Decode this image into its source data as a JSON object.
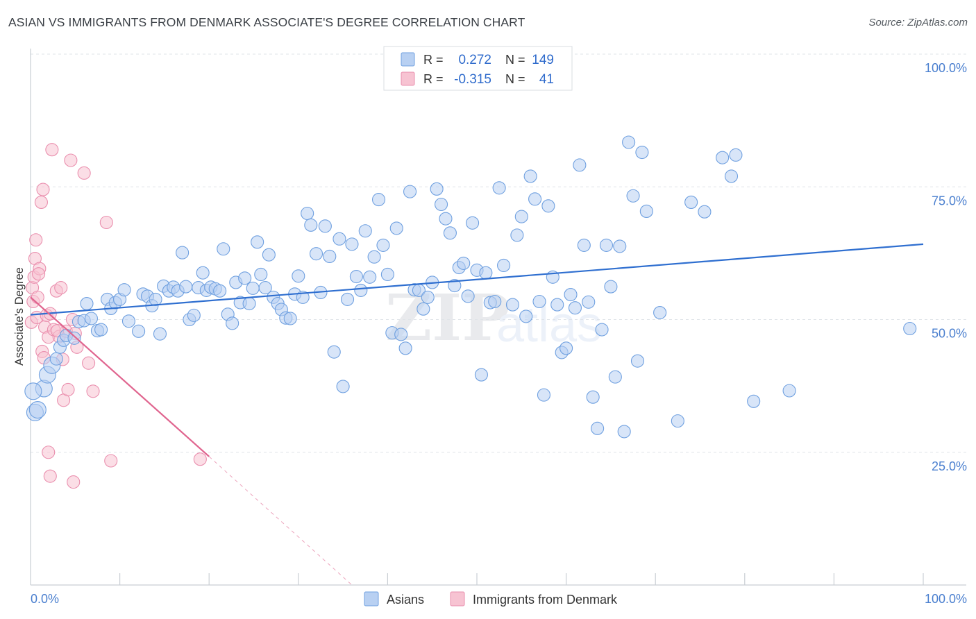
{
  "header": {
    "title": "ASIAN VS IMMIGRANTS FROM DENMARK ASSOCIATE'S DEGREE CORRELATION CHART",
    "source": "Source: ZipAtlas.com"
  },
  "watermark": {
    "zip": "ZIP",
    "atlas": "atlas"
  },
  "colors": {
    "asians_fill": "#b8d0f2",
    "asians_stroke": "#6fa0e0",
    "asians_line": "#2f6fd0",
    "denmark_fill": "#f7c3d2",
    "denmark_stroke": "#ea8fae",
    "denmark_line": "#e0658f",
    "tick_label": "#4a7fcf",
    "grid": "#dfe3e8"
  },
  "legend": {
    "r_label": "R =",
    "n_label": "N =",
    "rows": [
      {
        "r": "0.272",
        "n": "149"
      },
      {
        "r": "-0.315",
        "n": "41"
      }
    ]
  },
  "bottom_legend": [
    {
      "label": "Asians"
    },
    {
      "label": "Immigrants from Denmark"
    }
  ],
  "chart_data": {
    "type": "scatter",
    "xlabel": "",
    "ylabel": "Associate's Degree",
    "x_tick_labels": [
      "0.0%",
      "100.0%"
    ],
    "y_tick_labels": [
      "100.0%",
      "75.0%",
      "50.0%",
      "25.0%"
    ],
    "y_ticks": [
      100,
      75,
      50,
      25
    ],
    "xlim": [
      0,
      100
    ],
    "ylim": [
      0,
      100
    ],
    "grid": true,
    "legend_position": "top-center",
    "series": [
      {
        "name": "Asians",
        "trend": {
          "x": [
            0,
            100
          ],
          "y": [
            50.9,
            64.2
          ]
        },
        "points": [
          [
            0.5,
            32.5
          ],
          [
            0.8,
            33.0
          ],
          [
            1.5,
            37.0
          ],
          [
            1.9,
            39.6
          ],
          [
            2.4,
            41.4
          ],
          [
            2.9,
            42.6
          ],
          [
            3.3,
            44.8
          ],
          [
            3.7,
            46.1
          ],
          [
            4.0,
            47.0
          ],
          [
            4.9,
            46.5
          ],
          [
            5.4,
            49.6
          ],
          [
            6.0,
            49.8
          ],
          [
            6.8,
            50.2
          ],
          [
            7.5,
            47.9
          ],
          [
            7.9,
            48.1
          ],
          [
            8.6,
            53.8
          ],
          [
            9.0,
            52.1
          ],
          [
            9.5,
            53.2
          ],
          [
            10.0,
            53.8
          ],
          [
            10.5,
            55.6
          ],
          [
            11.0,
            49.7
          ],
          [
            12.1,
            47.8
          ],
          [
            12.6,
            54.8
          ],
          [
            13.1,
            54.4
          ],
          [
            13.6,
            52.6
          ],
          [
            14.0,
            53.8
          ],
          [
            14.5,
            47.3
          ],
          [
            14.9,
            56.3
          ],
          [
            15.5,
            55.4
          ],
          [
            16.0,
            56.1
          ],
          [
            16.5,
            55.4
          ],
          [
            17.0,
            62.6
          ],
          [
            17.4,
            56.2
          ],
          [
            17.8,
            50.0
          ],
          [
            18.3,
            50.8
          ],
          [
            18.8,
            56.0
          ],
          [
            19.3,
            58.8
          ],
          [
            19.7,
            55.5
          ],
          [
            20.2,
            56.1
          ],
          [
            20.7,
            55.8
          ],
          [
            21.2,
            55.4
          ],
          [
            21.6,
            63.3
          ],
          [
            22.1,
            51.0
          ],
          [
            22.6,
            49.3
          ],
          [
            23.0,
            57.0
          ],
          [
            23.5,
            53.2
          ],
          [
            24.0,
            57.8
          ],
          [
            24.5,
            53.0
          ],
          [
            24.9,
            55.9
          ],
          [
            25.4,
            64.6
          ],
          [
            25.8,
            58.5
          ],
          [
            26.3,
            56.0
          ],
          [
            26.7,
            62.2
          ],
          [
            27.2,
            54.2
          ],
          [
            27.7,
            53.0
          ],
          [
            28.1,
            51.9
          ],
          [
            28.6,
            50.3
          ],
          [
            29.1,
            50.2
          ],
          [
            29.6,
            54.8
          ],
          [
            30.0,
            58.2
          ],
          [
            30.5,
            54.2
          ],
          [
            31.0,
            70.0
          ],
          [
            31.4,
            67.8
          ],
          [
            32.0,
            62.4
          ],
          [
            32.5,
            55.1
          ],
          [
            33.0,
            67.6
          ],
          [
            33.5,
            61.9
          ],
          [
            34.0,
            43.9
          ],
          [
            34.6,
            65.2
          ],
          [
            35.0,
            37.4
          ],
          [
            35.5,
            53.8
          ],
          [
            36.0,
            64.2
          ],
          [
            36.5,
            58.1
          ],
          [
            37.0,
            55.5
          ],
          [
            37.5,
            66.7
          ],
          [
            38.0,
            58.0
          ],
          [
            38.5,
            61.8
          ],
          [
            39.0,
            72.6
          ],
          [
            39.5,
            64.0
          ],
          [
            40.0,
            58.5
          ],
          [
            40.5,
            47.5
          ],
          [
            41.0,
            67.2
          ],
          [
            41.5,
            47.2
          ],
          [
            42.0,
            44.6
          ],
          [
            42.5,
            74.1
          ],
          [
            43.0,
            55.6
          ],
          [
            43.5,
            55.5
          ],
          [
            44.0,
            52.0
          ],
          [
            44.5,
            54.2
          ],
          [
            45.0,
            57.0
          ],
          [
            45.5,
            74.6
          ],
          [
            46.0,
            71.7
          ],
          [
            46.5,
            69.0
          ],
          [
            47.0,
            66.3
          ],
          [
            47.5,
            56.4
          ],
          [
            48.0,
            59.8
          ],
          [
            48.5,
            60.6
          ],
          [
            49.0,
            54.4
          ],
          [
            49.5,
            68.2
          ],
          [
            50.0,
            59.3
          ],
          [
            50.5,
            39.6
          ],
          [
            51.0,
            58.8
          ],
          [
            51.5,
            53.2
          ],
          [
            52.0,
            53.4
          ],
          [
            52.5,
            74.8
          ],
          [
            53.0,
            60.2
          ],
          [
            54.0,
            52.8
          ],
          [
            54.5,
            65.9
          ],
          [
            55.0,
            69.4
          ],
          [
            55.5,
            50.6
          ],
          [
            56.0,
            77.0
          ],
          [
            56.5,
            72.7
          ],
          [
            57.0,
            53.4
          ],
          [
            57.5,
            35.8
          ],
          [
            58.0,
            71.4
          ],
          [
            58.5,
            58.0
          ],
          [
            59.0,
            52.8
          ],
          [
            59.5,
            43.8
          ],
          [
            60.0,
            44.6
          ],
          [
            60.5,
            54.7
          ],
          [
            61.0,
            52.2
          ],
          [
            61.5,
            79.1
          ],
          [
            62.0,
            64.0
          ],
          [
            62.5,
            53.3
          ],
          [
            63.0,
            35.4
          ],
          [
            63.5,
            29.5
          ],
          [
            64.0,
            48.1
          ],
          [
            64.5,
            64.0
          ],
          [
            65.0,
            56.2
          ],
          [
            65.5,
            39.2
          ],
          [
            66.0,
            63.8
          ],
          [
            66.5,
            28.9
          ],
          [
            67.0,
            83.4
          ],
          [
            67.5,
            73.3
          ],
          [
            68.0,
            42.2
          ],
          [
            68.5,
            81.5
          ],
          [
            69.0,
            70.4
          ],
          [
            70.5,
            51.3
          ],
          [
            72.5,
            30.9
          ],
          [
            74.0,
            72.1
          ],
          [
            75.5,
            70.3
          ],
          [
            77.5,
            80.5
          ],
          [
            78.5,
            77.0
          ],
          [
            79.0,
            81.0
          ],
          [
            81.0,
            34.6
          ],
          [
            85.0,
            36.6
          ],
          [
            98.5,
            48.3
          ],
          [
            0.3,
            36.5
          ],
          [
            6.3,
            53.0
          ]
        ]
      },
      {
        "name": "Immigrants from Denmark",
        "trend": {
          "x": [
            0,
            20
          ],
          "y": [
            54.2,
            24.2
          ],
          "dashed_to": {
            "x": 36,
            "y": 0
          }
        },
        "points": [
          [
            0.1,
            49.5
          ],
          [
            0.2,
            56.0
          ],
          [
            0.3,
            53.4
          ],
          [
            0.4,
            58.0
          ],
          [
            0.5,
            61.5
          ],
          [
            0.6,
            65.0
          ],
          [
            0.7,
            50.4
          ],
          [
            0.8,
            54.2
          ],
          [
            1.0,
            59.6
          ],
          [
            1.2,
            72.1
          ],
          [
            1.4,
            74.5
          ],
          [
            1.6,
            48.6
          ],
          [
            1.8,
            50.8
          ],
          [
            2.0,
            46.7
          ],
          [
            2.2,
            51.1
          ],
          [
            2.4,
            82.0
          ],
          [
            2.6,
            48.1
          ],
          [
            2.9,
            55.4
          ],
          [
            3.2,
            46.8
          ],
          [
            3.4,
            56.0
          ],
          [
            3.6,
            42.5
          ],
          [
            3.7,
            34.8
          ],
          [
            4.0,
            47.8
          ],
          [
            4.2,
            36.8
          ],
          [
            4.5,
            80.0
          ],
          [
            4.7,
            50.0
          ],
          [
            5.0,
            47.4
          ],
          [
            5.2,
            44.8
          ],
          [
            6.0,
            77.6
          ],
          [
            6.5,
            41.8
          ],
          [
            7.0,
            36.5
          ],
          [
            8.5,
            68.3
          ],
          [
            9.0,
            23.4
          ],
          [
            19.0,
            23.7
          ],
          [
            2.0,
            25.0
          ],
          [
            2.2,
            20.5
          ],
          [
            4.8,
            19.4
          ],
          [
            1.3,
            44.0
          ],
          [
            1.5,
            42.8
          ],
          [
            3.0,
            47.9
          ],
          [
            0.9,
            58.6
          ]
        ]
      }
    ]
  }
}
